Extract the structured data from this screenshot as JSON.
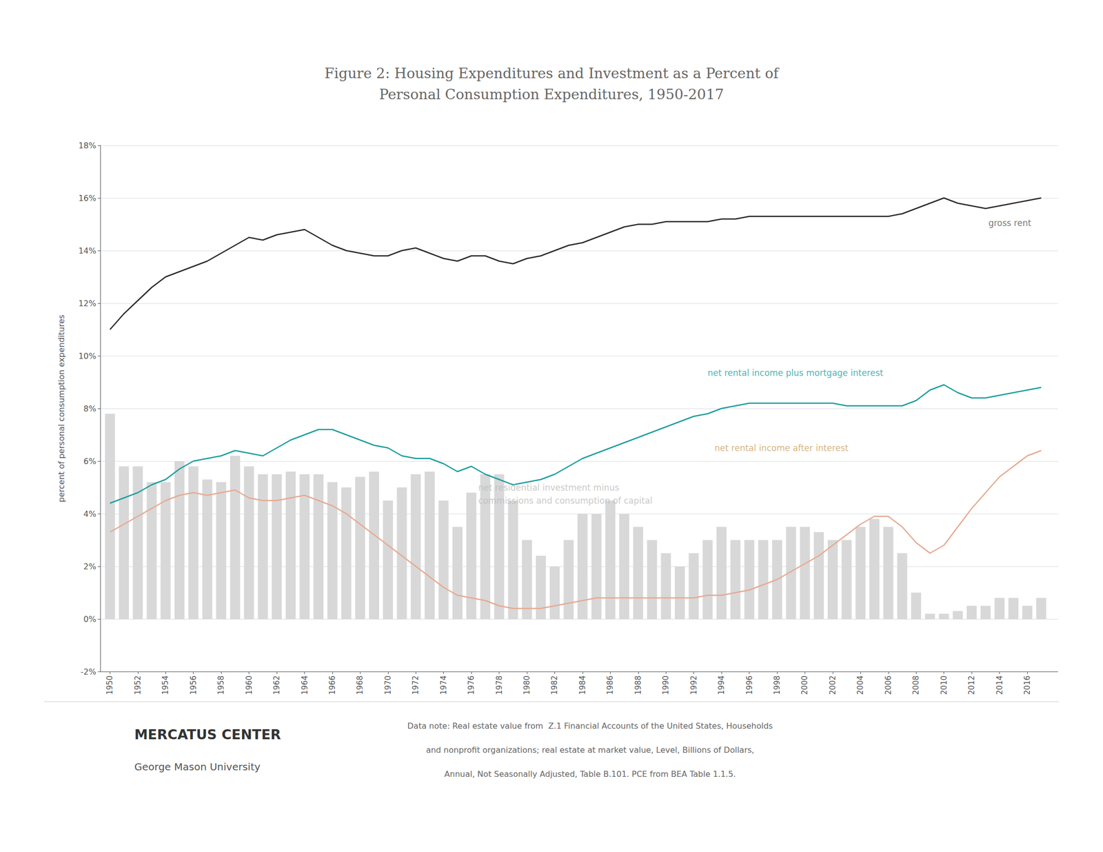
{
  "chart_data": {
    "type": "line",
    "title": "Figure 2: Housing Expenditures and Investment as a Percent of\nPersonal Consumption Expenditures, 1950-2017",
    "ylabel": "percent of personal consumption expenditures",
    "x": [
      1950,
      1951,
      1952,
      1953,
      1954,
      1955,
      1956,
      1957,
      1958,
      1959,
      1960,
      1961,
      1962,
      1963,
      1964,
      1965,
      1966,
      1967,
      1968,
      1969,
      1970,
      1971,
      1972,
      1973,
      1974,
      1975,
      1976,
      1977,
      1978,
      1979,
      1980,
      1981,
      1982,
      1983,
      1984,
      1985,
      1986,
      1987,
      1988,
      1989,
      1990,
      1991,
      1992,
      1993,
      1994,
      1995,
      1996,
      1997,
      1998,
      1999,
      2000,
      2001,
      2002,
      2003,
      2004,
      2005,
      2006,
      2007,
      2008,
      2009,
      2010,
      2011,
      2012,
      2013,
      2014,
      2015,
      2016,
      2017
    ],
    "series": [
      {
        "type": "bar",
        "color": "#d8d8d8",
        "values": [
          7.8,
          5.8,
          5.8,
          5.2,
          5.2,
          6.0,
          5.8,
          5.3,
          5.2,
          6.2,
          5.8,
          5.5,
          5.5,
          5.6,
          5.5,
          5.5,
          5.2,
          5.0,
          5.4,
          5.6,
          4.5,
          5.0,
          5.5,
          5.6,
          4.5,
          3.5,
          4.8,
          5.5,
          5.5,
          4.5,
          3.0,
          2.4,
          2.0,
          3.0,
          4.0,
          4.0,
          4.5,
          4.0,
          3.5,
          3.0,
          2.5,
          2.0,
          2.5,
          3.0,
          3.5,
          3.0,
          3.0,
          3.0,
          3.0,
          3.5,
          3.5,
          3.3,
          3.0,
          3.0,
          3.5,
          3.8,
          3.5,
          2.5,
          1.0,
          0.2,
          0.2,
          0.3,
          0.5,
          0.5,
          0.8,
          0.8,
          0.5,
          0.8
        ]
      },
      {
        "type": "line",
        "color": "#2a2a2a",
        "values": [
          11.0,
          11.6,
          12.1,
          12.6,
          13.0,
          13.2,
          13.4,
          13.6,
          13.9,
          14.2,
          14.5,
          14.4,
          14.6,
          14.7,
          14.8,
          14.5,
          14.2,
          14.0,
          13.9,
          13.8,
          13.8,
          14.0,
          14.1,
          13.9,
          13.7,
          13.6,
          13.8,
          13.8,
          13.6,
          13.5,
          13.7,
          13.8,
          14.0,
          14.2,
          14.3,
          14.5,
          14.7,
          14.9,
          15.0,
          15.0,
          15.1,
          15.1,
          15.1,
          15.1,
          15.2,
          15.2,
          15.3,
          15.3,
          15.3,
          15.3,
          15.3,
          15.3,
          15.3,
          15.3,
          15.3,
          15.3,
          15.3,
          15.4,
          15.6,
          15.8,
          16.0,
          15.8,
          15.7,
          15.6,
          15.7,
          15.8,
          15.9,
          16.0
        ]
      },
      {
        "type": "line",
        "color": "#1a9d9d",
        "values": [
          4.4,
          4.6,
          4.8,
          5.1,
          5.3,
          5.7,
          6.0,
          6.1,
          6.2,
          6.4,
          6.3,
          6.2,
          6.5,
          6.8,
          7.0,
          7.2,
          7.2,
          7.0,
          6.8,
          6.6,
          6.5,
          6.2,
          6.1,
          6.1,
          5.9,
          5.6,
          5.8,
          5.5,
          5.3,
          5.1,
          5.2,
          5.3,
          5.5,
          5.8,
          6.1,
          6.3,
          6.5,
          6.7,
          6.9,
          7.1,
          7.3,
          7.5,
          7.7,
          7.8,
          8.0,
          8.1,
          8.2,
          8.2,
          8.2,
          8.2,
          8.2,
          8.2,
          8.2,
          8.1,
          8.1,
          8.1,
          8.1,
          8.1,
          8.3,
          8.7,
          8.9,
          8.6,
          8.4,
          8.4,
          8.5,
          8.6,
          8.7,
          8.8
        ]
      },
      {
        "type": "line",
        "color": "#e8a890",
        "values": [
          3.3,
          3.6,
          3.9,
          4.2,
          4.5,
          4.7,
          4.8,
          4.7,
          4.8,
          4.9,
          4.6,
          4.5,
          4.5,
          4.6,
          4.7,
          4.5,
          4.3,
          4.0,
          3.6,
          3.2,
          2.8,
          2.4,
          2.0,
          1.6,
          1.2,
          0.9,
          0.8,
          0.7,
          0.5,
          0.4,
          0.4,
          0.4,
          0.5,
          0.6,
          0.7,
          0.8,
          0.8,
          0.8,
          0.8,
          0.8,
          0.8,
          0.8,
          0.8,
          0.9,
          0.9,
          1.0,
          1.1,
          1.3,
          1.5,
          1.8,
          2.1,
          2.4,
          2.8,
          3.2,
          3.6,
          3.9,
          3.9,
          3.5,
          2.9,
          2.5,
          2.8,
          3.5,
          4.2,
          4.8,
          5.4,
          5.8,
          6.2,
          6.4
        ]
      }
    ],
    "xlim": [
      1949.3,
      2018.2
    ],
    "xticks": [
      1950,
      1952,
      1954,
      1956,
      1958,
      1960,
      1962,
      1964,
      1966,
      1968,
      1970,
      1972,
      1974,
      1976,
      1978,
      1980,
      1982,
      1984,
      1986,
      1988,
      1990,
      1992,
      1994,
      1996,
      1998,
      2000,
      2002,
      2004,
      2006,
      2008,
      2010,
      2012,
      2014,
      2016
    ],
    "ylim": [
      -2,
      18
    ],
    "yticks": [
      {
        "value": -2,
        "label": "-2%"
      },
      {
        "value": 0,
        "label": "0%"
      },
      {
        "value": 2,
        "label": "2%"
      },
      {
        "value": 4,
        "label": "4%"
      },
      {
        "value": 6,
        "label": "6%"
      },
      {
        "value": 8,
        "label": "8%"
      },
      {
        "value": 10,
        "label": "10%"
      },
      {
        "value": 12,
        "label": "12%"
      },
      {
        "value": 14,
        "label": "14%"
      },
      {
        "value": 16,
        "label": "16%"
      },
      {
        "value": 18,
        "label": "18%"
      }
    ],
    "grid": true,
    "annotations": [
      {
        "text": "gross rent",
        "x": 2013.2,
        "y": 15.05,
        "color": "#555555"
      },
      {
        "text": "net rental income plus mortgage interest",
        "x": 1993.0,
        "y": 9.35,
        "color": "#1a9d9d"
      },
      {
        "text": "net rental income after interest",
        "x": 1993.5,
        "y": 6.5,
        "color": "#c8a060"
      },
      {
        "text": "net residential investment minus\ncommissions and consumption of capital",
        "x": 1976.5,
        "y": 4.75,
        "color": "#bbbbbb"
      }
    ],
    "logo_text": [
      "MERCATUS CENTER",
      "George Mason University"
    ],
    "footer": [
      "Data note: Real estate value from  Z.1 Financial Accounts of the United States, Households",
      "and nonprofit organizations; real estate at market value, Level, Billions of Dollars,",
      "Annual, Not Seasonally Adjusted, Table B.101. PCE from BEA Table 1.1.5."
    ]
  }
}
